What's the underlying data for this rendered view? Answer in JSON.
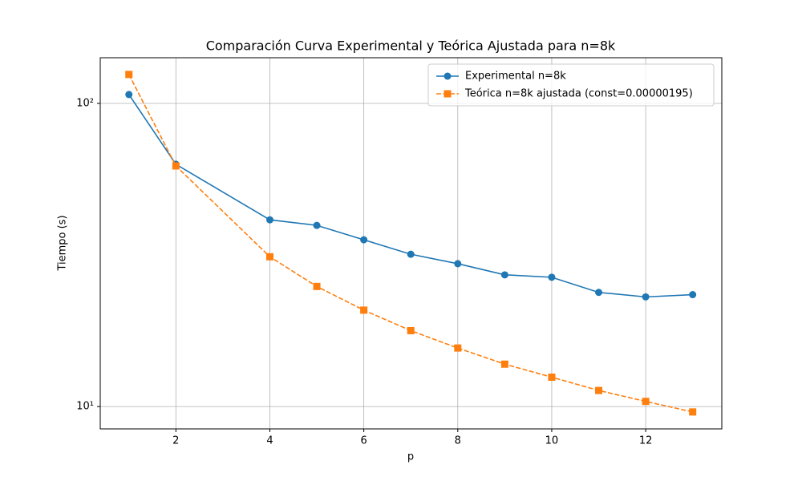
{
  "chart_data": {
    "type": "line",
    "title": "Comparación Curva Experimental y Teórica Ajustada para n=8k",
    "x_label": "p",
    "y_label": "Tiempo (s)",
    "x": [
      1,
      2,
      4,
      5,
      6,
      7,
      8,
      9,
      10,
      11,
      12,
      13
    ],
    "series": [
      {
        "name": "Experimental n=8k",
        "color": "#1f77b4",
        "marker": "circle",
        "dash": "solid",
        "values": [
          107,
          63,
          41.3,
          39.6,
          35.5,
          31.8,
          29.6,
          27.2,
          26.7,
          23.8,
          23.0,
          23.4
        ]
      },
      {
        "name": "Teórica n=8k ajustada (const=0.00000195)",
        "color": "#ff7f0e",
        "marker": "square",
        "dash": "dashed",
        "values": [
          124.6,
          62.2,
          31.2,
          24.9,
          20.8,
          17.8,
          15.6,
          13.8,
          12.5,
          11.3,
          10.4,
          9.6
        ]
      }
    ],
    "xlim": [
      0.39,
      13.62
    ],
    "ylim": [
      8.44,
      141.5
    ],
    "xticks": [
      2,
      4,
      6,
      8,
      10,
      12
    ],
    "yticks": [
      {
        "value": 10,
        "label": "10¹"
      },
      {
        "value": 100,
        "label": "10²"
      }
    ],
    "y_scale": "log",
    "grid": true,
    "legend": "upper right"
  }
}
